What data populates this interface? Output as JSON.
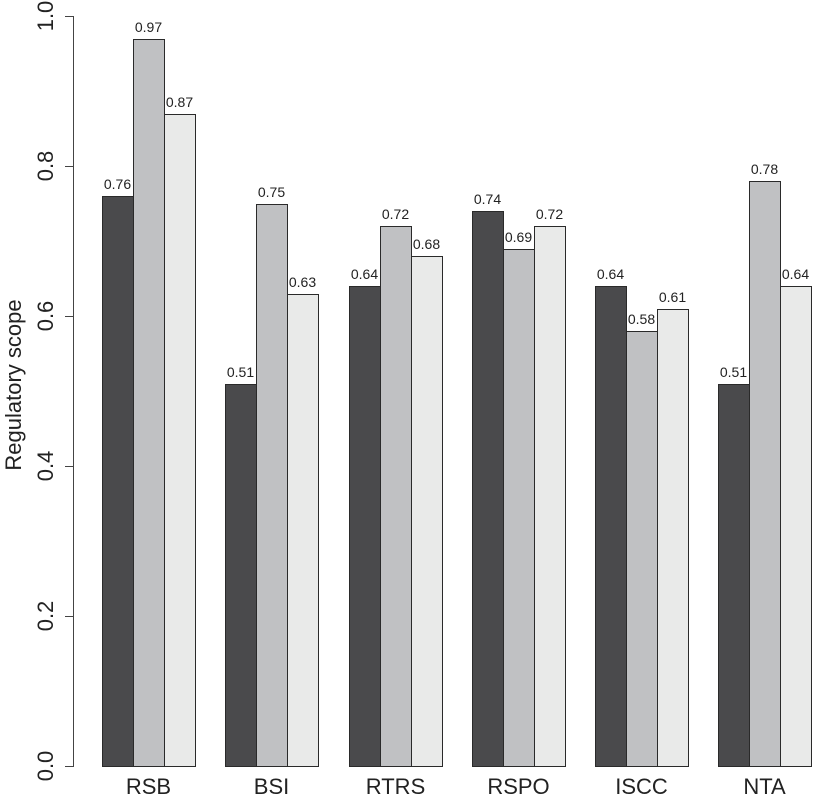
{
  "chart_data": {
    "type": "bar",
    "title": "",
    "xlabel": "",
    "ylabel": "Regulatory scope",
    "ylim": [
      0,
      1.0
    ],
    "yticks": [
      "0.0",
      "0.2",
      "0.4",
      "0.6",
      "0.8",
      "1.0"
    ],
    "grid": false,
    "legend": null,
    "categories": [
      "RSB",
      "BSI",
      "RTRS",
      "RSPO",
      "ISCC",
      "NTA"
    ],
    "series": [
      {
        "name": "series-1",
        "color": "#4a4a4c",
        "values": [
          0.76,
          0.51,
          0.64,
          0.74,
          0.64,
          0.51
        ]
      },
      {
        "name": "series-2",
        "color": "#c0c1c3",
        "values": [
          0.97,
          0.75,
          0.72,
          0.69,
          0.58,
          0.78
        ]
      },
      {
        "name": "series-3",
        "color": "#e9eae9",
        "values": [
          0.87,
          0.63,
          0.68,
          0.72,
          0.61,
          0.64
        ]
      }
    ],
    "value_labels": [
      [
        "0.76",
        "0.97",
        "0.87"
      ],
      [
        "0.51",
        "0.75",
        "0.63"
      ],
      [
        "0.64",
        "0.72",
        "0.68"
      ],
      [
        "0.74",
        "0.69",
        "0.72"
      ],
      [
        "0.64",
        "0.58",
        "0.61"
      ],
      [
        "0.51",
        "0.78",
        "0.64"
      ]
    ]
  }
}
